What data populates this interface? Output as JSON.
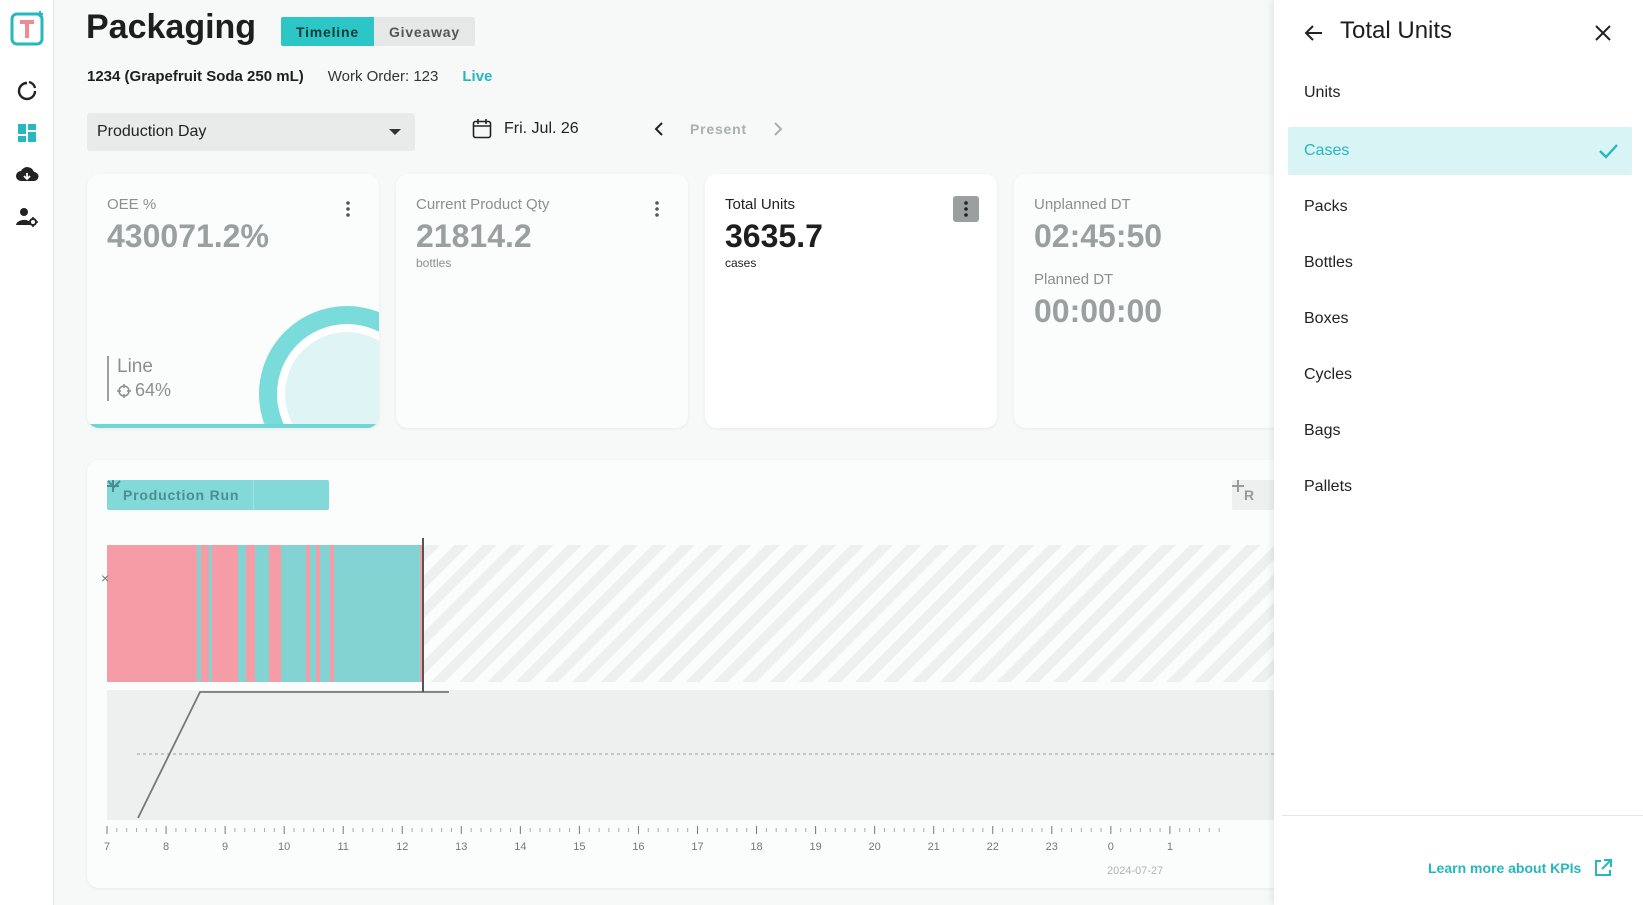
{
  "header": {
    "title": "Packaging",
    "tabs": [
      {
        "label": "Timeline",
        "active": true
      },
      {
        "label": "Giveaway",
        "active": false
      }
    ],
    "product": "1234 (Grapefruit Soda 250 mL)",
    "work_order": "Work Order: 123",
    "status": "Live"
  },
  "controls": {
    "period": "Production Day",
    "date": "Fri. Jul. 26",
    "present": "Present"
  },
  "nav": {
    "icons": [
      "logo-icon",
      "refresh-icon",
      "dashboard-icon",
      "cloud-icon",
      "user-settings-icon"
    ]
  },
  "kpis": [
    {
      "label": "OEE %",
      "value": "430071.2%",
      "unit": "",
      "line_label": "Line",
      "line_target": "64%"
    },
    {
      "label": "Current Product Qty",
      "value": "21814.2",
      "unit": "bottles"
    },
    {
      "label": "Total Units",
      "value": "3635.7",
      "unit": "cases"
    },
    {
      "label": "Unplanned DT",
      "value": "02:45:50",
      "label2": "Planned DT",
      "value2": "00:00:00"
    }
  ],
  "timeline": {
    "production_run_label": "Production Run",
    "right_button_label": "R",
    "x_ticks": [
      "7",
      "8",
      "9",
      "10",
      "11",
      "12",
      "13",
      "14",
      "15",
      "16",
      "17",
      "18",
      "19",
      "20",
      "21",
      "22",
      "23",
      "0",
      "1"
    ],
    "date_label": "2024-07-27",
    "colors": {
      "down": "#f59ca6",
      "running": "#84d3d3"
    }
  },
  "drawer": {
    "title": "Total Units",
    "options": [
      {
        "label": "Units",
        "selected": false
      },
      {
        "label": "Cases",
        "selected": true
      },
      {
        "label": "Packs",
        "selected": false
      },
      {
        "label": "Bottles",
        "selected": false
      },
      {
        "label": "Boxes",
        "selected": false
      },
      {
        "label": "Cycles",
        "selected": false
      },
      {
        "label": "Bags",
        "selected": false
      },
      {
        "label": "Pallets",
        "selected": false
      }
    ],
    "learn_more": "Learn more about KPIs"
  },
  "colors": {
    "accent": "#26b7bf",
    "accent_light": "#d8f4f4"
  }
}
